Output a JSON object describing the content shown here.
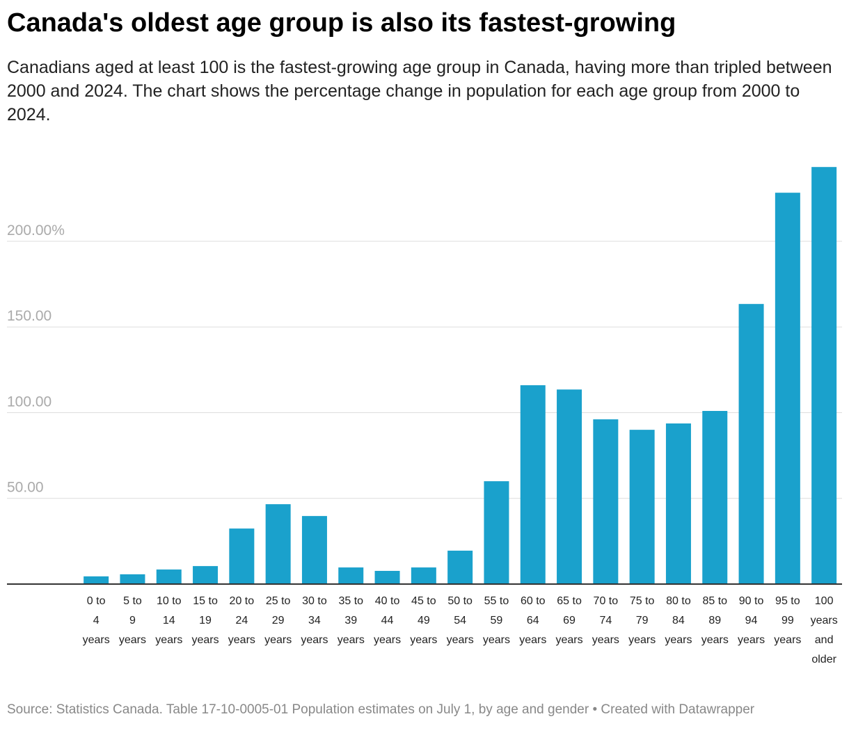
{
  "chart_data": {
    "type": "bar",
    "title": "Canada's oldest age group is also its fastest-growing",
    "subtitle": "Canadians aged at least 100 is the fastest-growing age group in Canada, having more than tripled between 2000 and 2024. The chart shows the percentage change in population for each age group from 2000 to 2024.",
    "source": "Source: Statistics Canada. Table 17-10-0005-01 Population estimates on July 1, by age and gender • Created with Datawrapper",
    "categories": [
      "0 to 4 years",
      "5 to 9 years",
      "10 to 14 years",
      "15 to 19 years",
      "20 to 24 years",
      "25 to 29 years",
      "30 to 34 years",
      "35 to 39 years",
      "40 to 44 years",
      "45 to 49 years",
      "50 to 54 years",
      "55 to 59 years",
      "60 to 64 years",
      "65 to 69 years",
      "70 to 74 years",
      "75 to 79 years",
      "80 to 84 years",
      "85 to 89 years",
      "90 to 94 years",
      "95 to 99 years",
      "100 years and older"
    ],
    "values": [
      4.5,
      5.7,
      8.5,
      10.5,
      32.4,
      46.6,
      39.7,
      9.7,
      7.7,
      9.7,
      19.5,
      60.0,
      116.0,
      113.5,
      96.1,
      90.0,
      93.7,
      101.0,
      163.4,
      228.3,
      243.3
    ],
    "color": "#1aa1cc",
    "ylim": [
      0,
      245
    ],
    "yticks": [
      {
        "value": 50,
        "label": "50.00"
      },
      {
        "value": 100,
        "label": "100.00"
      },
      {
        "value": 150,
        "label": "150.00"
      },
      {
        "value": 200,
        "label": "200.00%"
      }
    ],
    "grid": true
  }
}
